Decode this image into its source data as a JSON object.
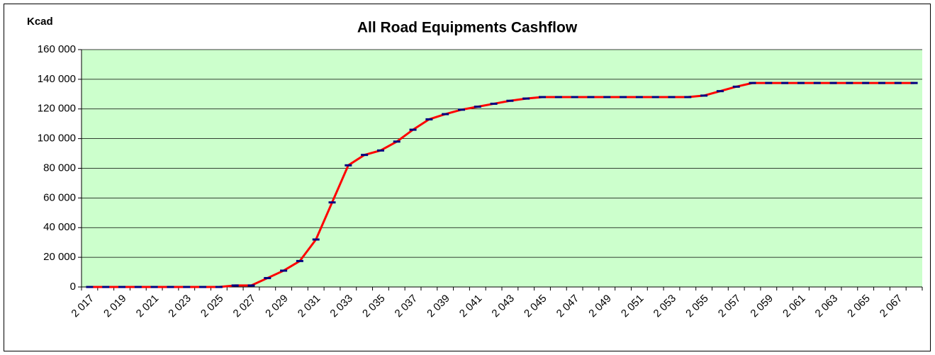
{
  "chart_data": {
    "type": "line",
    "title": "All Road Equipments Cashflow",
    "y_axis_label": "Kcad",
    "categories": [
      "2 017",
      null,
      "2 019",
      null,
      "2 021",
      null,
      "2 023",
      null,
      "2 025",
      null,
      "2 027",
      null,
      "2 029",
      null,
      "2 031",
      null,
      "2 033",
      null,
      "2 035",
      null,
      "2 037",
      null,
      "2 039",
      null,
      "2 041",
      null,
      "2 043",
      null,
      "2 045",
      null,
      "2 047",
      null,
      "2 049",
      null,
      "2 051",
      null,
      "2 053",
      null,
      "2 055",
      null,
      "2 057",
      null,
      "2 059",
      null,
      "2 061",
      null,
      "2 063",
      null,
      "2 065",
      null,
      "2 067",
      null
    ],
    "series": [
      {
        "color": "#ff0000",
        "marker_color": "#000080",
        "values": [
          0,
          0,
          0,
          0,
          0,
          0,
          0,
          0,
          0,
          1000,
          1000,
          6000,
          11000,
          17500,
          32000,
          57000,
          82000,
          89000,
          92000,
          98000,
          106000,
          113000,
          116500,
          119500,
          121500,
          123500,
          125500,
          127000,
          128000,
          128000,
          128000,
          128000,
          128000,
          128000,
          128000,
          128000,
          128000,
          128000,
          129000,
          132000,
          135000,
          137500,
          137500,
          137500,
          137500,
          137500,
          137500,
          137500,
          137500,
          137500,
          137500,
          137500
        ]
      }
    ],
    "ylim": [
      0,
      160000
    ],
    "yticks": [
      {
        "value": 0,
        "label": "0"
      },
      {
        "value": 20000,
        "label": "20 000"
      },
      {
        "value": 40000,
        "label": "40 000"
      },
      {
        "value": 60000,
        "label": "60 000"
      },
      {
        "value": 80000,
        "label": "80 000"
      },
      {
        "value": 100000,
        "label": "100 000"
      },
      {
        "value": 120000,
        "label": "120 000"
      },
      {
        "value": 140000,
        "label": "140 000"
      },
      {
        "value": 160000,
        "label": "160 000"
      }
    ],
    "grid": true,
    "plot_background": "#ccffcc"
  }
}
